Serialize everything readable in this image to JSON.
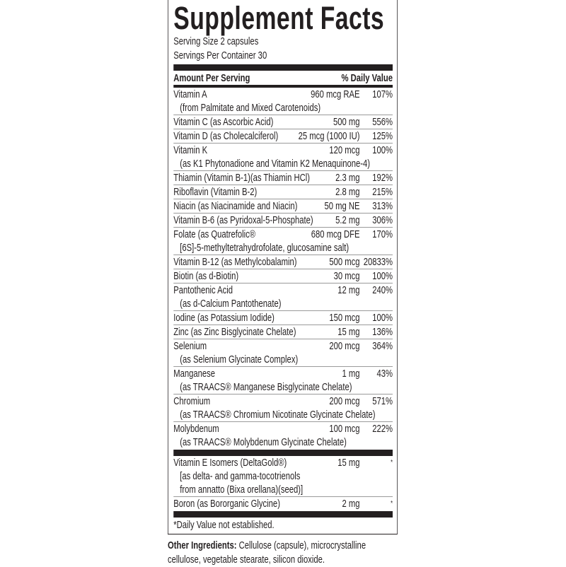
{
  "title": "Supplement Facts",
  "serving_size": "Serving Size 2 capsules",
  "servings_per_container": "Servings Per Container 30",
  "header": {
    "amount": "Amount Per Serving",
    "dv": "% Daily Value"
  },
  "rows": [
    {
      "name": "Vitamin A",
      "amount": "960 mcg RAE",
      "dv": "107%",
      "sub": [
        "(from Palmitate and Mixed Carotenoids)"
      ]
    },
    {
      "name": "Vitamin C (as Ascorbic Acid)",
      "amount": "500 mg",
      "dv": "556%",
      "sub": []
    },
    {
      "name": "Vitamin D (as Cholecalciferol)",
      "amount": "25 mcg (1000 IU)",
      "dv": "125%",
      "sub": []
    },
    {
      "name": "Vitamin K",
      "amount": "120 mcg",
      "dv": "100%",
      "sub": [
        "(as K1 Phytonadione and Vitamin K2 Menaquinone-4)"
      ]
    },
    {
      "name": "Thiamin (Vitamin B-1)(as Thiamin HCl)",
      "amount": "2.3 mg",
      "dv": "192%",
      "sub": []
    },
    {
      "name": "Riboflavin (Vitamin B-2)",
      "amount": "2.8 mg",
      "dv": "215%",
      "sub": []
    },
    {
      "name": "Niacin (as Niacinamide and Niacin)",
      "amount": "50 mg NE",
      "dv": "313%",
      "sub": []
    },
    {
      "name": "Vitamin B-6 (as Pyridoxal-5-Phosphate)",
      "amount": "5.2 mg",
      "dv": "306%",
      "sub": []
    },
    {
      "name": "Folate (as Quatrefolic®",
      "amount": "680 mcg DFE",
      "dv": "170%",
      "sub": [
        "[6S]-5-methyltetrahydrofolate, glucosamine salt)"
      ]
    },
    {
      "name": "Vitamin B-12 (as Methylcobalamin)",
      "amount": "500 mcg",
      "dv": "20833%",
      "sub": []
    },
    {
      "name": "Biotin (as d-Biotin)",
      "amount": "30 mcg",
      "dv": "100%",
      "sub": []
    },
    {
      "name": "Pantothenic Acid",
      "amount": "12 mg",
      "dv": "240%",
      "sub": [
        "(as d-Calcium Pantothenate)"
      ]
    },
    {
      "name": "Iodine (as Potassium Iodide)",
      "amount": "150 mcg",
      "dv": "100%",
      "sub": []
    },
    {
      "name": "Zinc (as Zinc Bisglycinate Chelate)",
      "amount": "15 mg",
      "dv": "136%",
      "sub": []
    },
    {
      "name": "Selenium",
      "amount": "200 mcg",
      "dv": "364%",
      "sub": [
        "(as Selenium Glycinate Complex)"
      ]
    },
    {
      "name": "Manganese",
      "amount": "1 mg",
      "dv": "43%",
      "sub": [
        "(as TRAACS® Manganese Bisglycinate Chelate)"
      ]
    },
    {
      "name": "Chromium",
      "amount": "200 mcg",
      "dv": "571%",
      "sub": [
        "(as TRAACS® Chromium Nicotinate Glycinate Chelate)"
      ]
    },
    {
      "name": "Molybdenum",
      "amount": "100 mcg",
      "dv": "222%",
      "sub": [
        "(as TRAACS® Molybdenum Glycinate Chelate)"
      ]
    }
  ],
  "rows2": [
    {
      "name": "Vitamin E Isomers (DeltaGold®)",
      "amount": "15 mg",
      "dv": "*",
      "sub": [
        "[as delta- and gamma-tocotrienols",
        "from annatto (Bixa orellana)(seed)]"
      ]
    },
    {
      "name": "Boron (as Bororganic Glycine)",
      "amount": "2 mg",
      "dv": "*",
      "sub": []
    }
  ],
  "footnote": "*Daily Value not established.",
  "other_ingredients": {
    "label": "Other Ingredients:",
    "text": " Cellulose (capsule), microcrystalline cellulose, vegetable stearate, silicon dioxide."
  }
}
